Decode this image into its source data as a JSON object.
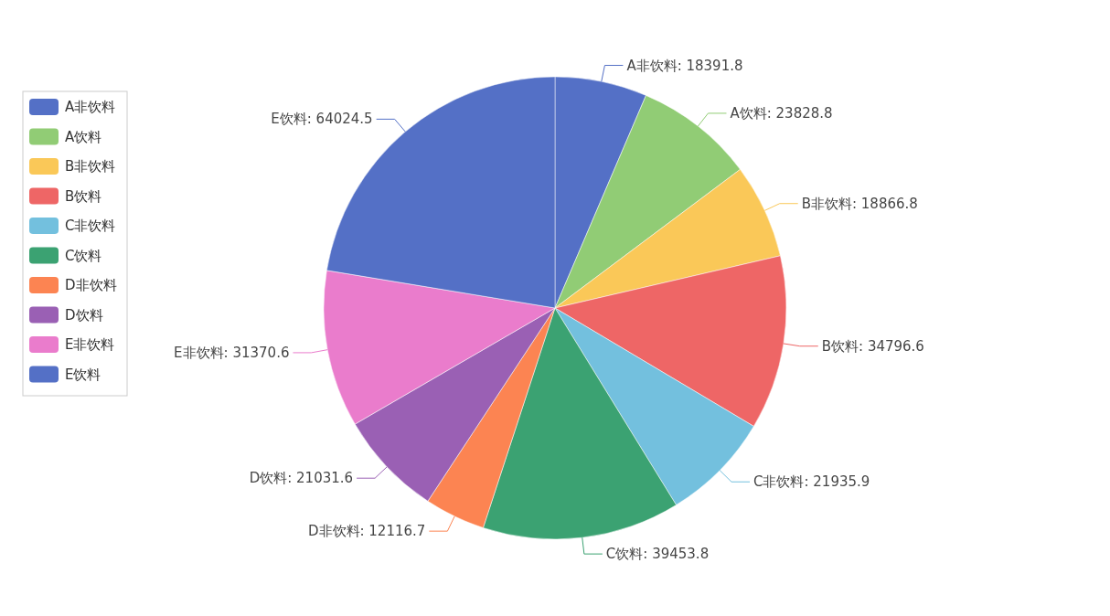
{
  "chart_data": {
    "type": "pie",
    "categories": [
      "A非饮料",
      "A饮料",
      "B非饮料",
      "B饮料",
      "C非饮料",
      "C饮料",
      "D非饮料",
      "D饮料",
      "E非饮料",
      "E饮料"
    ],
    "values": [
      18391.8,
      23828.8,
      18866.8,
      34796.6,
      21935.9,
      39453.8,
      12116.7,
      21031.6,
      31370.6,
      64024.5
    ],
    "value_labels": [
      "A非饮料: 18391.8",
      "A饮料: 23828.8",
      "B非饮料: 18866.8",
      "B饮料: 34796.6",
      "C非饮料: 21935.9",
      "C饮料: 39453.8",
      "D非饮料: 12116.7",
      "D饮料: 21031.6",
      "E非饮料: 31370.6",
      "E饮料: 64024.5"
    ],
    "colors": [
      "#5470c6",
      "#91cc75",
      "#fac858",
      "#ee6666",
      "#73c0de",
      "#3ba272",
      "#fc8452",
      "#9a60b4",
      "#ea7ccc",
      "#5470c6"
    ],
    "legend": "left"
  }
}
